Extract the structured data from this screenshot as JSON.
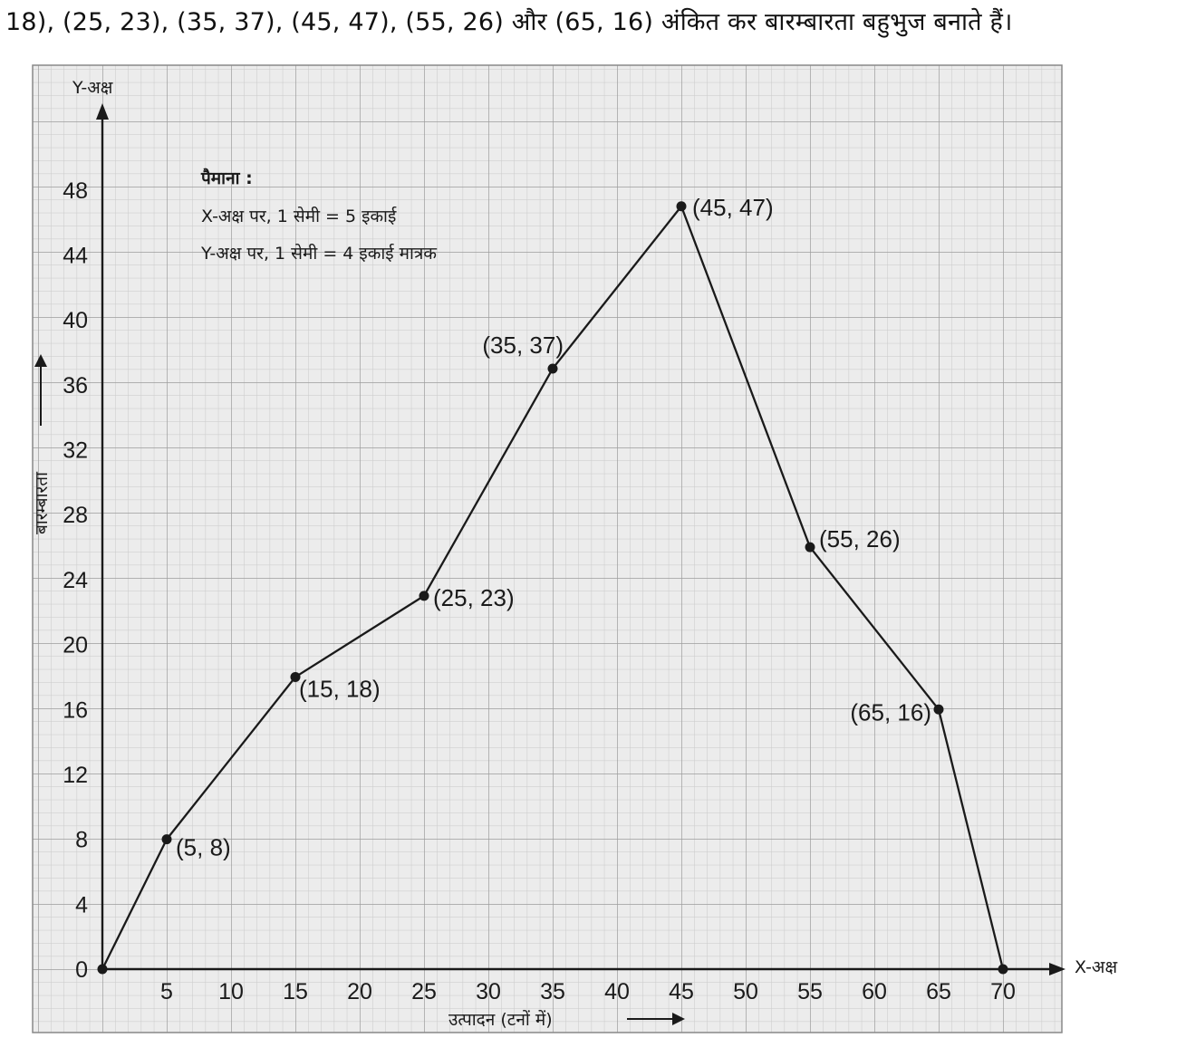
{
  "caption": "18), (25, 23), (35, 37), (45, 47), (55, 26) और (65, 16) अंकित कर बारम्बारता बहुभुज बनाते हैं।",
  "chart_data": {
    "type": "line",
    "x_axis_label": "X-अक्ष",
    "y_axis_label": "Y-अक्ष",
    "xlabel": "उत्पादन (टनों में)",
    "ylabel": "बारम्बारता",
    "scale_title": "पैमाना :",
    "scale_lines": [
      "X-अक्ष पर, 1 सेमी = 5 इकाई",
      "Y-अक्ष पर, 1 सेमी = 4 इकाई मात्रक"
    ],
    "origin_label": "0",
    "xlim": [
      0,
      70
    ],
    "ylim": [
      0,
      48
    ],
    "x_ticks": [
      5,
      10,
      15,
      20,
      25,
      30,
      35,
      40,
      45,
      50,
      55,
      60,
      65,
      70
    ],
    "y_ticks": [
      4,
      8,
      12,
      16,
      20,
      24,
      28,
      32,
      36,
      40,
      44,
      48
    ],
    "grid": true,
    "points": [
      {
        "x": 0,
        "y": 0,
        "label": ""
      },
      {
        "x": 5,
        "y": 8,
        "label": "(5, 8)"
      },
      {
        "x": 15,
        "y": 18,
        "label": "(15, 18)"
      },
      {
        "x": 25,
        "y": 23,
        "label": "(25, 23)"
      },
      {
        "x": 35,
        "y": 37,
        "label": "(35, 37)"
      },
      {
        "x": 45,
        "y": 47,
        "label": "(45, 47)"
      },
      {
        "x": 55,
        "y": 26,
        "label": "(55, 26)"
      },
      {
        "x": 65,
        "y": 16,
        "label": "(65, 16)"
      },
      {
        "x": 70,
        "y": 0,
        "label": ""
      }
    ],
    "colors": {
      "line": "#1a1a1a",
      "grid_fine": "#cfcfcf",
      "grid_major": "#a8a8a8",
      "paper": "#ededed"
    }
  }
}
